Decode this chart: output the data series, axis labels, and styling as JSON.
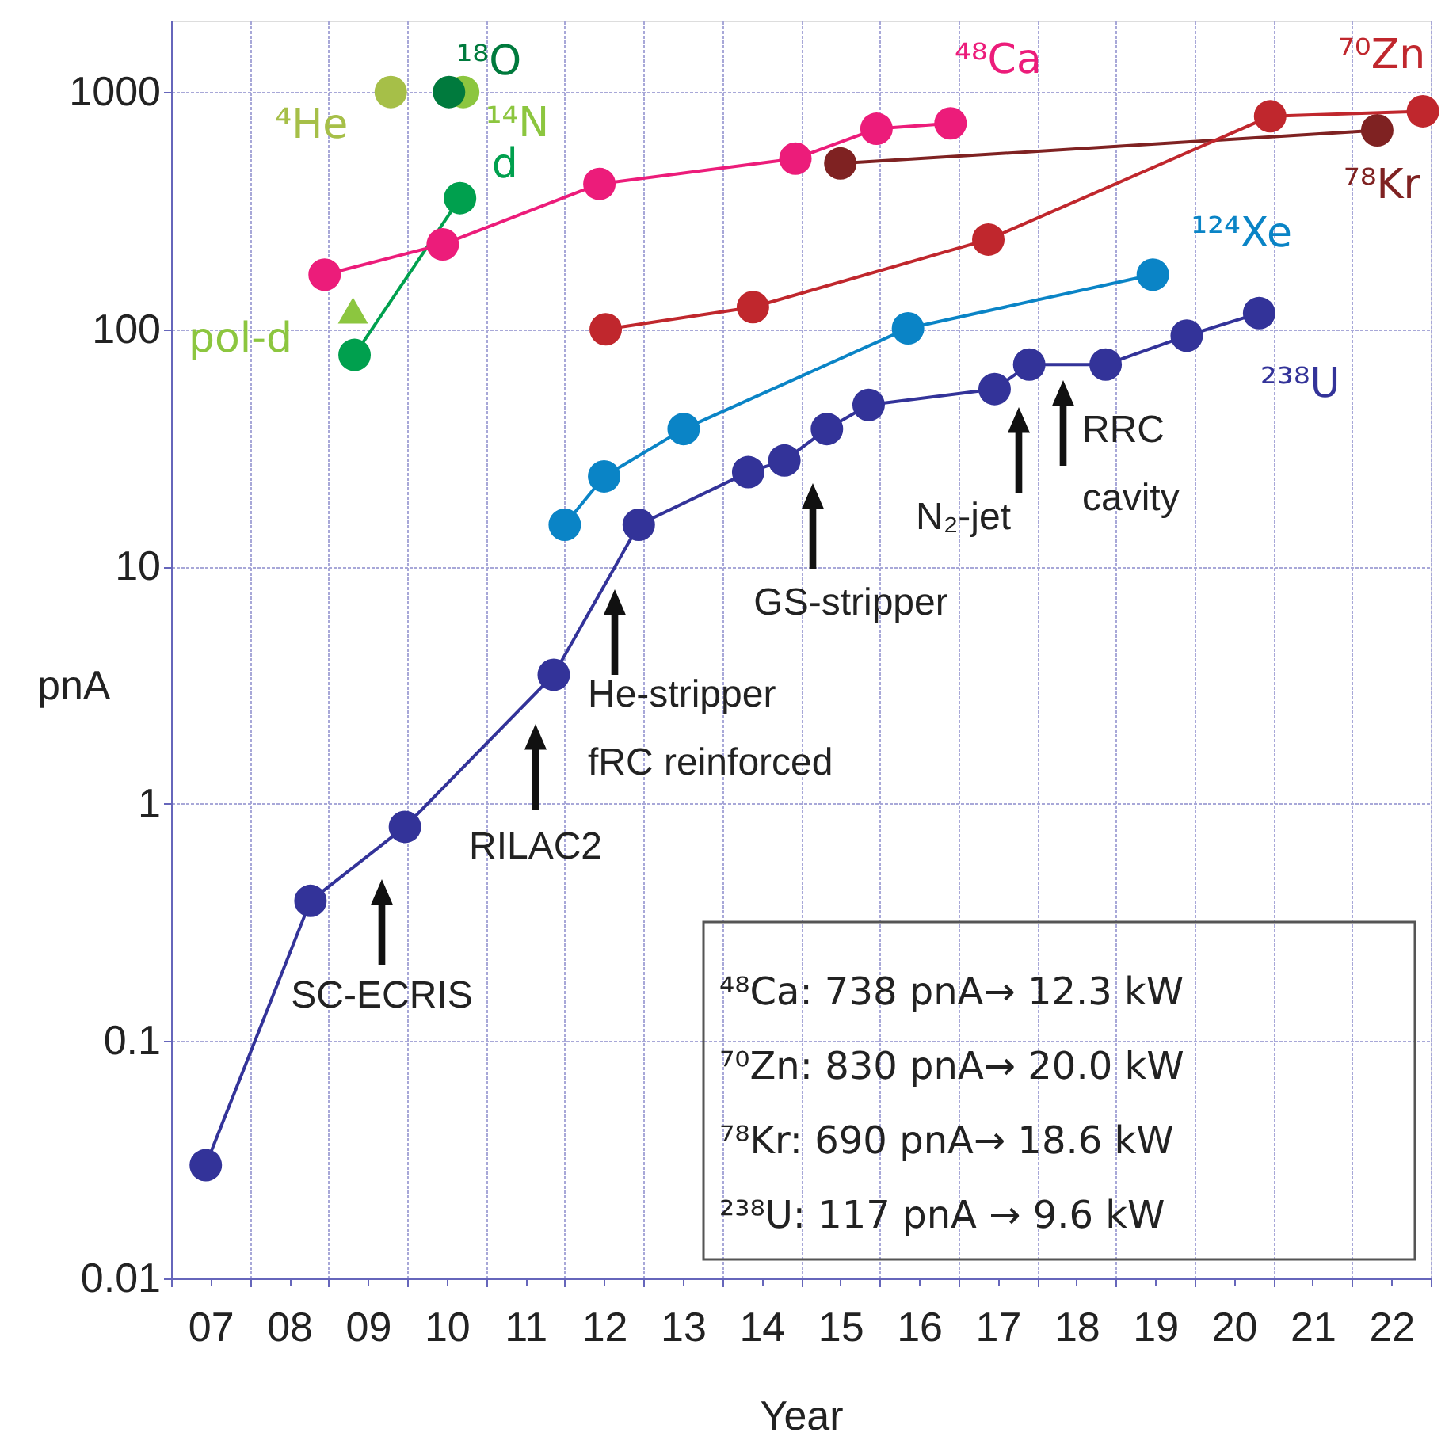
{
  "chart_data": {
    "type": "line",
    "xlabel": "Year",
    "ylabel": "pnA",
    "log": "y",
    "grid": true,
    "marker": "circle",
    "line_style": "solid",
    "xlim": [
      7,
      23
    ],
    "ylim": [
      0.01,
      2000
    ],
    "xticks": [
      {
        "value": 7,
        "label": null
      },
      {
        "value": 7.5,
        "label": "07"
      },
      {
        "value": 8,
        "label": null
      },
      {
        "value": 8.5,
        "label": "08"
      },
      {
        "value": 9,
        "label": null
      },
      {
        "value": 9.5,
        "label": "09"
      },
      {
        "value": 10,
        "label": null
      },
      {
        "value": 10.5,
        "label": "10"
      },
      {
        "value": 11,
        "label": null
      },
      {
        "value": 11.5,
        "label": "11"
      },
      {
        "value": 12,
        "label": null
      },
      {
        "value": 12.5,
        "label": "12"
      },
      {
        "value": 13,
        "label": null
      },
      {
        "value": 13.5,
        "label": "13"
      },
      {
        "value": 14,
        "label": null
      },
      {
        "value": 14.5,
        "label": "14"
      },
      {
        "value": 15,
        "label": null
      },
      {
        "value": 15.5,
        "label": "15"
      },
      {
        "value": 16,
        "label": null
      },
      {
        "value": 16.5,
        "label": "16"
      },
      {
        "value": 17,
        "label": null
      },
      {
        "value": 17.5,
        "label": "17"
      },
      {
        "value": 18,
        "label": null
      },
      {
        "value": 18.5,
        "label": "18"
      },
      {
        "value": 19,
        "label": null
      },
      {
        "value": 19.5,
        "label": "19"
      },
      {
        "value": 20,
        "label": null
      },
      {
        "value": 20.5,
        "label": "20"
      },
      {
        "value": 21,
        "label": null
      },
      {
        "value": 21.5,
        "label": "21"
      },
      {
        "value": 22,
        "label": null
      },
      {
        "value": 22.5,
        "label": "22"
      },
      {
        "value": 23,
        "label": null
      }
    ],
    "yticks": [
      0.01,
      0.1,
      1,
      10,
      100,
      1000
    ],
    "series": [
      {
        "name": "⁴He",
        "type": "scatter",
        "color": "#a6bf48",
        "x": [
          9.79
        ],
        "values": [
          1000
        ]
      },
      {
        "name": "¹⁴N",
        "type": "scatter",
        "color": "#8cc63f",
        "x": [
          10.71
        ],
        "values": [
          1000
        ]
      },
      {
        "name": "¹⁸O",
        "type": "scatter",
        "color": "#007a3d",
        "x": [
          10.53
        ],
        "values": [
          1000
        ]
      },
      {
        "name": "d",
        "color": "#00a04e",
        "x": [
          9.33,
          10.67
        ],
        "values": [
          78,
          357
        ]
      },
      {
        "name": "pol-d",
        "type": "scatter",
        "marker": "triangle",
        "color": "#8cc63f",
        "x": [
          9.31
        ],
        "values": [
          120
        ]
      },
      {
        "name": "⁴⁸Ca",
        "color": "#ec1c7a",
        "x": [
          8.95,
          10.45,
          12.44,
          14.93,
          15.96,
          16.9
        ],
        "values": [
          170,
          228,
          410,
          524,
          700,
          738
        ]
      },
      {
        "name": "⁷⁸Kr",
        "color": "#7f2222",
        "x": [
          15.5,
          22.32
        ],
        "values": [
          500,
          690
        ]
      },
      {
        "name": "⁷⁰Zn",
        "color": "#c0272d",
        "x": [
          12.52,
          14.39,
          17.38,
          20.96,
          22.9
        ],
        "values": [
          100,
          124,
          239,
          790,
          830
        ]
      },
      {
        "name": "¹²⁴Xe",
        "color": "#0a84c6",
        "x": [
          12.0,
          12.5,
          13.51,
          16.36,
          19.47
        ],
        "values": [
          15,
          24,
          38,
          101,
          170
        ]
      },
      {
        "name": "²³⁸U",
        "color": "#333399",
        "x": [
          7.44,
          8.77,
          9.97,
          11.86,
          12.94,
          14.33,
          14.79,
          15.33,
          15.86,
          17.46,
          17.9,
          18.87,
          19.9,
          20.82
        ],
        "values": [
          0.03,
          0.39,
          0.8,
          3.5,
          15,
          25,
          28,
          38,
          48,
          56,
          71,
          71,
          94,
          117
        ]
      }
    ],
    "annotations": [
      "SC-ECRIS",
      "RILAC2",
      "He-stripper\nfRC reinforced",
      "GS-stripper",
      "N₂-jet",
      "RRC\ncavity",
      "⁴⁸Ca:  738 pnA→ 12.3 kW",
      "⁷⁰Zn:  830 pnA→ 20.0 kW",
      "⁷⁸Kr:   690 pnA→ 18.6 kW",
      "²³⁸U:  117 pnA →   9.6 kW"
    ]
  }
}
